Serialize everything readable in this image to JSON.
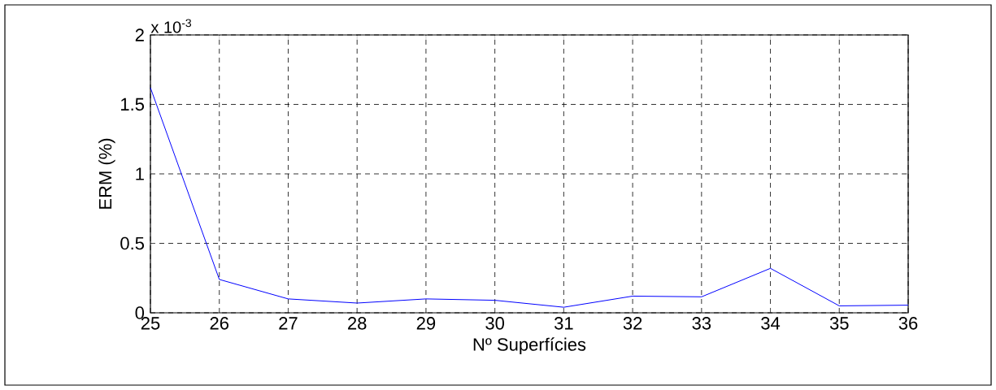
{
  "chart_data": {
    "type": "line",
    "xlabel": "Nº Superfícies",
    "ylabel": "ERM (%)",
    "annotations": [
      "x 10$^{-3}$"
    ],
    "x": [
      25,
      26,
      27,
      28,
      29,
      30,
      31,
      32,
      33,
      34,
      35,
      36
    ],
    "values": [
      1.62,
      0.24,
      0.1,
      0.07,
      0.1,
      0.09,
      0.04,
      0.12,
      0.115,
      0.32,
      0.05,
      0.055
    ],
    "color": "#0000ff",
    "marker": "none",
    "line_style": "solid",
    "xlim": [
      25,
      36
    ],
    "ylim": [
      0,
      2
    ],
    "xticks": [
      25,
      26,
      27,
      28,
      29,
      30,
      31,
      32,
      33,
      34,
      35,
      36
    ],
    "yticks": [
      0,
      0.5,
      1,
      1.5,
      2
    ],
    "grid": true
  }
}
